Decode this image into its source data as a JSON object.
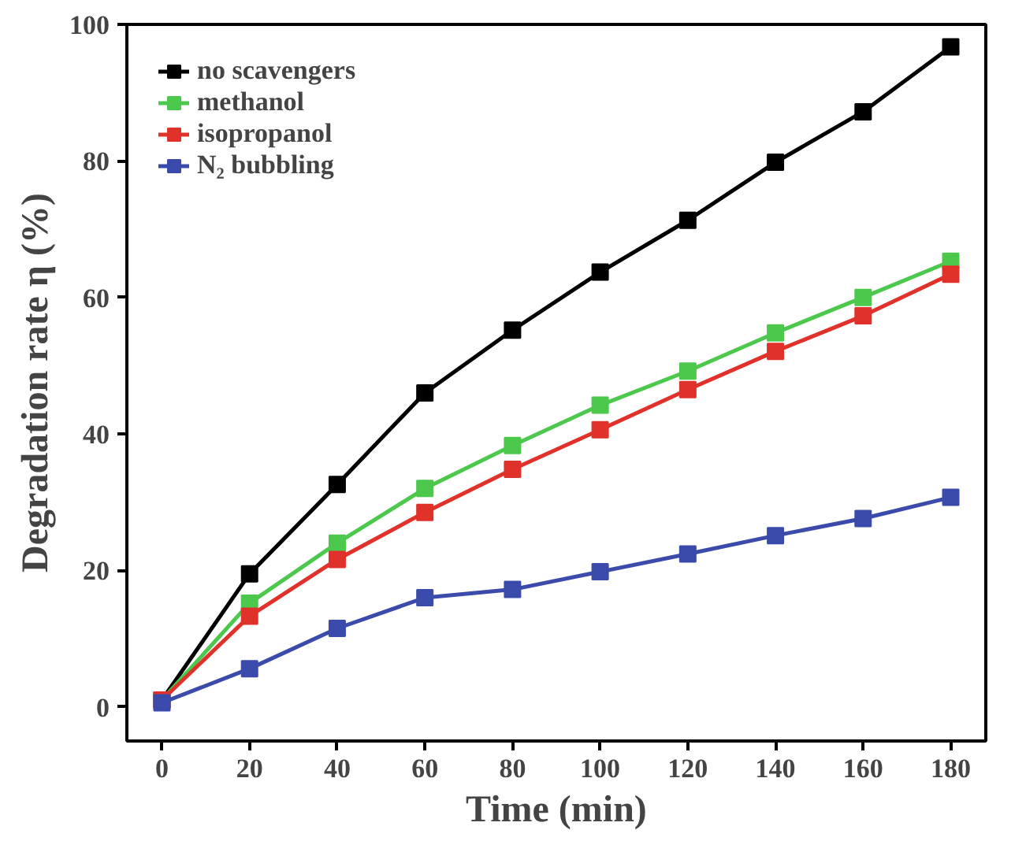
{
  "chart_data": {
    "type": "line",
    "xlabel": "Time (min)",
    "ylabel": "Degradation rate η (%)",
    "x": [
      0,
      20,
      40,
      60,
      80,
      100,
      120,
      140,
      160,
      180
    ],
    "series": [
      {
        "name": "no scavengers",
        "color": "#000000",
        "values": [
          1,
          19.5,
          32.6,
          46,
          55.2,
          63.7,
          71.3,
          79.8,
          87.2,
          96.7
        ]
      },
      {
        "name": "methanol",
        "color": "#4cc84c",
        "values": [
          1,
          15.2,
          24,
          32,
          38.3,
          44.2,
          49.2,
          54.8,
          60,
          65.3
        ]
      },
      {
        "name": "isopropanol",
        "color": "#e0312a",
        "values": [
          1,
          13.3,
          21.6,
          28.5,
          34.8,
          40.6,
          46.5,
          52.1,
          57.3,
          63.4
        ]
      },
      {
        "name": "N₂ bubbling",
        "color": "#3b4bab",
        "values": [
          0.6,
          5.6,
          11.5,
          16,
          17.2,
          19.8,
          22.4,
          25.1,
          27.6,
          30.7
        ]
      }
    ],
    "xlim": [
      -8,
      188
    ],
    "ylim": [
      -5,
      100
    ],
    "xticks": [
      0,
      20,
      40,
      60,
      80,
      100,
      120,
      140,
      160,
      180
    ],
    "yticks": [
      0,
      20,
      40,
      60,
      80,
      100
    ],
    "marker": "square",
    "line_style": "solid",
    "legend": "top left",
    "grid": false
  }
}
